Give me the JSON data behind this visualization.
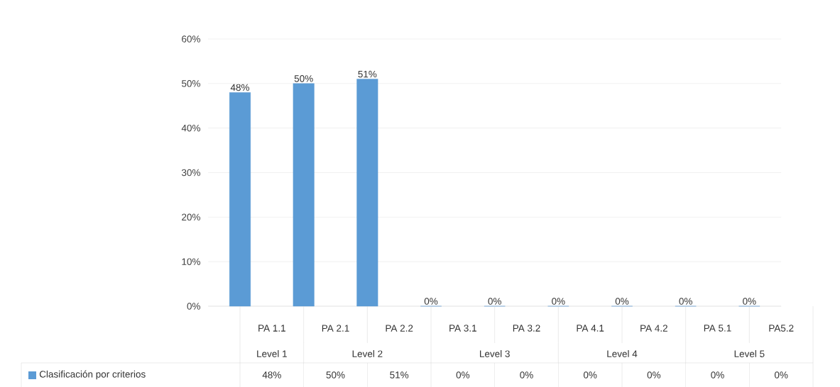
{
  "chart_data": {
    "type": "bar",
    "categories": [
      "PA 1.1",
      "PA 2.1",
      "PA 2.2",
      "PA 3.1",
      "PA 3.2",
      "PA 4.1",
      "PA 4.2",
      "PA 5.1",
      "PA5.2"
    ],
    "series": [
      {
        "name": "Clasificación por criterios",
        "color": "#5b9bd5",
        "values": [
          48,
          50,
          51,
          0,
          0,
          0,
          0,
          0,
          0
        ],
        "value_labels": [
          "48%",
          "50%",
          "51%",
          "0%",
          "0%",
          "0%",
          "0%",
          "0%",
          "0%"
        ]
      }
    ],
    "ylim": [
      0,
      60
    ],
    "yticks": [
      {
        "value": 0,
        "label": "0%"
      },
      {
        "value": 10,
        "label": "10%"
      },
      {
        "value": 20,
        "label": "20%"
      },
      {
        "value": 30,
        "label": "30%"
      },
      {
        "value": 40,
        "label": "40%"
      },
      {
        "value": 50,
        "label": "50%"
      },
      {
        "value": 60,
        "label": "60%"
      }
    ],
    "grid": "y",
    "legend": "bottom left",
    "annotations": [
      "Level 1",
      "Level 2",
      "Level 3",
      "Level 4",
      "Level 5"
    ]
  }
}
